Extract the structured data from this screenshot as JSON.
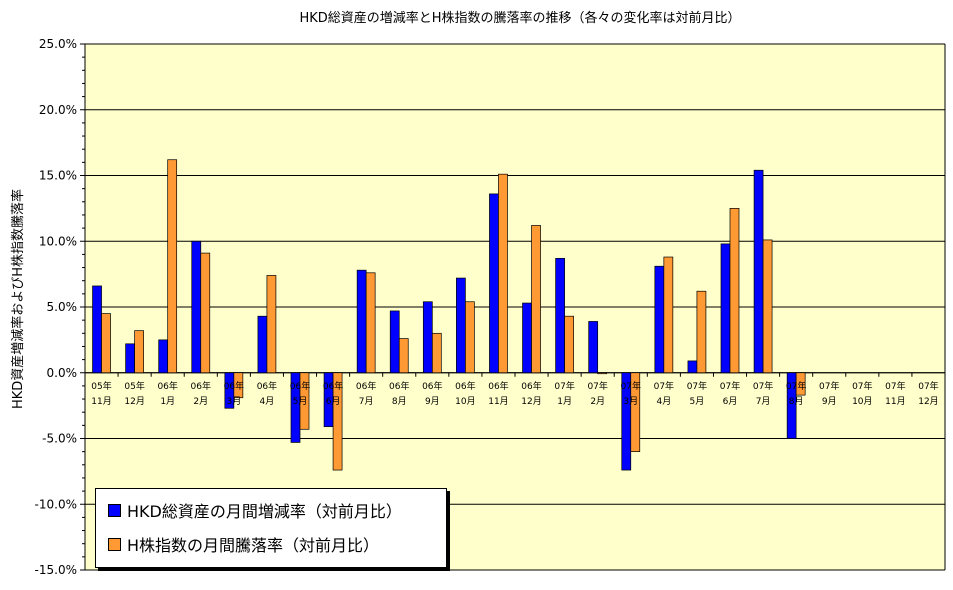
{
  "chart_data": {
    "type": "bar",
    "title": "HKD総資産の増減率とH株指数の騰落率の推移（各々の変化率は対前月比）",
    "ylabel": "HKD資産増減率およびH株指数騰落率",
    "xlabel": "",
    "ylim": [
      -15,
      25
    ],
    "ytick_step": 5,
    "ytick_labels": [
      "25.0%",
      "20.0%",
      "15.0%",
      "10.0%",
      "5.0%",
      "0.0%",
      "-5.0%",
      "-10.0%",
      "-15.0%"
    ],
    "categories": [
      [
        "05年",
        "11月"
      ],
      [
        "05年",
        "12月"
      ],
      [
        "06年",
        "1月"
      ],
      [
        "06年",
        "2月"
      ],
      [
        "06年",
        "3月"
      ],
      [
        "06年",
        "4月"
      ],
      [
        "06年",
        "5月"
      ],
      [
        "06年",
        "6月"
      ],
      [
        "06年",
        "7月"
      ],
      [
        "06年",
        "8月"
      ],
      [
        "06年",
        "9月"
      ],
      [
        "06年",
        "10月"
      ],
      [
        "06年",
        "11月"
      ],
      [
        "06年",
        "12月"
      ],
      [
        "07年",
        "1月"
      ],
      [
        "07年",
        "2月"
      ],
      [
        "07年",
        "3月"
      ],
      [
        "07年",
        "4月"
      ],
      [
        "07年",
        "5月"
      ],
      [
        "07年",
        "6月"
      ],
      [
        "07年",
        "7月"
      ],
      [
        "07年",
        "8月"
      ],
      [
        "07年",
        "9月"
      ],
      [
        "07年",
        "10月"
      ],
      [
        "07年",
        "11月"
      ],
      [
        "07年",
        "12月"
      ]
    ],
    "series": [
      {
        "name": "HKD総資産の月間増減率（対前月比）",
        "color": "#0000ff",
        "values": [
          6.6,
          2.2,
          2.5,
          10.0,
          -2.7,
          4.3,
          -5.3,
          -4.1,
          7.8,
          4.7,
          5.4,
          7.2,
          13.6,
          5.3,
          8.7,
          3.9,
          -7.4,
          8.1,
          0.9,
          9.8,
          15.4,
          -5.0,
          null,
          null,
          null,
          null
        ]
      },
      {
        "name": "H株指数の月間騰落率（対前月比）",
        "color": "#ff9933",
        "values": [
          4.5,
          3.2,
          16.2,
          9.1,
          -1.9,
          7.4,
          -4.3,
          -7.4,
          7.6,
          2.6,
          3.0,
          5.4,
          15.1,
          11.2,
          4.3,
          0.0,
          -6.0,
          8.8,
          6.2,
          12.5,
          10.1,
          -1.7,
          null,
          null,
          null,
          null
        ]
      }
    ],
    "grid": "horizontal major lines",
    "legend_position": "bottom-left",
    "colors": {
      "plot_background": "#ffffcc",
      "page_background": "#ffffff",
      "axis": "#000000"
    }
  }
}
